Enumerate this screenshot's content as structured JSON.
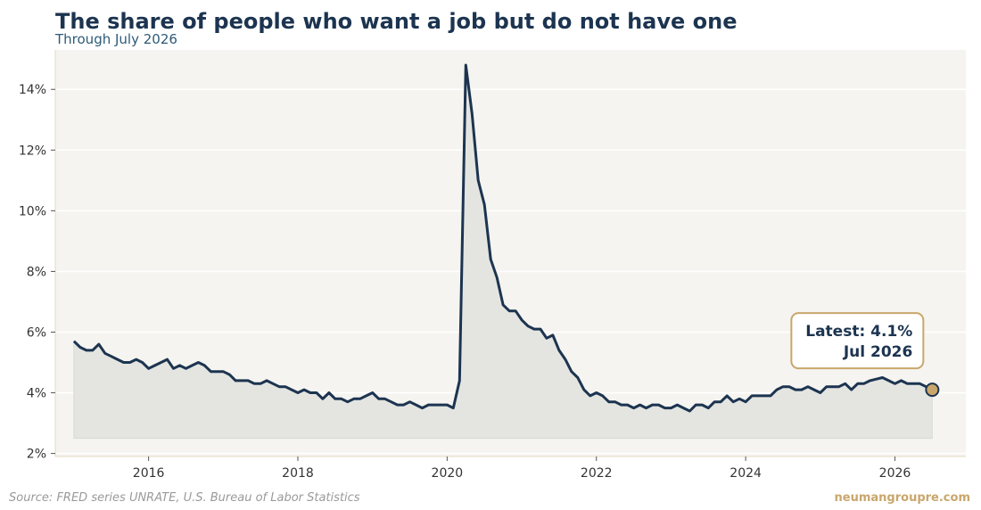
{
  "header": {
    "title": "The share of people who want a job but do not have one",
    "subtitle": "Through July 2026"
  },
  "footer": {
    "source": "Source: FRED series UNRATE, U.S. Bureau of Labor Statistics",
    "brand": "neumangroupre.com"
  },
  "colors": {
    "line": "#1c3450",
    "fill": "#e4e5e1",
    "plot_bg": "#f5f4f0",
    "grid": "#ffffff",
    "accent": "#c9a66b"
  },
  "chart_data": {
    "type": "area",
    "title": "The share of people who want a job but do not have one",
    "subtitle": "Through July 2026",
    "xlabel": "",
    "ylabel": "",
    "xlim": [
      2014.75,
      2026.95
    ],
    "ylim": [
      1.9,
      15.3
    ],
    "y_ticks": [
      2,
      4,
      6,
      8,
      10,
      12,
      14
    ],
    "y_tick_labels": [
      "2%",
      "4%",
      "6%",
      "8%",
      "10%",
      "12%",
      "14%"
    ],
    "x_ticks": [
      2016,
      2018,
      2020,
      2022,
      2024,
      2026
    ],
    "x_tick_labels": [
      "2016",
      "2018",
      "2020",
      "2022",
      "2024",
      "2026"
    ],
    "area_baseline": 2.5,
    "grid": "horizontal",
    "series": [
      {
        "x_start": "2015-01",
        "frequency": "monthly",
        "values": [
          5.7,
          5.5,
          5.4,
          5.4,
          5.6,
          5.3,
          5.2,
          5.1,
          5.0,
          5.0,
          5.1,
          5.0,
          4.8,
          4.9,
          5.0,
          5.1,
          4.8,
          4.9,
          4.8,
          4.9,
          5.0,
          4.9,
          4.7,
          4.7,
          4.7,
          4.6,
          4.4,
          4.4,
          4.4,
          4.3,
          4.3,
          4.4,
          4.3,
          4.2,
          4.2,
          4.1,
          4.0,
          4.1,
          4.0,
          4.0,
          3.8,
          4.0,
          3.8,
          3.8,
          3.7,
          3.8,
          3.8,
          3.9,
          4.0,
          3.8,
          3.8,
          3.7,
          3.6,
          3.6,
          3.7,
          3.6,
          3.5,
          3.6,
          3.6,
          3.6,
          3.6,
          3.5,
          4.4,
          14.8,
          13.2,
          11.0,
          10.2,
          8.4,
          7.8,
          6.9,
          6.7,
          6.7,
          6.4,
          6.2,
          6.1,
          6.1,
          5.8,
          5.9,
          5.4,
          5.1,
          4.7,
          4.5,
          4.1,
          3.9,
          4.0,
          3.9,
          3.7,
          3.7,
          3.6,
          3.6,
          3.5,
          3.6,
          3.5,
          3.6,
          3.6,
          3.5,
          3.5,
          3.6,
          3.5,
          3.4,
          3.6,
          3.6,
          3.5,
          3.7,
          3.7,
          3.9,
          3.7,
          3.8,
          3.7,
          3.9,
          3.9,
          3.9,
          3.9,
          4.1,
          4.2,
          4.2,
          4.1,
          4.1,
          4.2,
          4.1,
          4.0,
          4.2,
          4.2,
          4.2,
          4.3,
          4.1,
          4.3,
          4.3,
          4.4,
          4.45,
          4.5,
          4.4,
          4.3,
          4.4,
          4.3,
          4.3,
          4.3,
          4.2,
          4.1
        ]
      }
    ],
    "latest_point": {
      "date": "2026-07",
      "value": 4.1
    },
    "annotation": {
      "line1": "Latest: 4.1%",
      "line2": "Jul 2026"
    }
  }
}
